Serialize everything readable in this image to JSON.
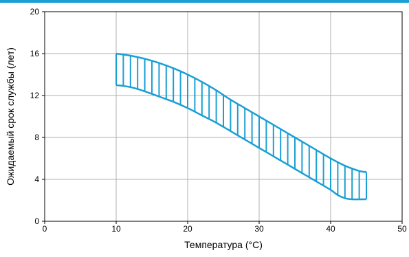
{
  "chart_data": {
    "type": "area",
    "xlabel": "Температура (°C)",
    "ylabel": "Ожидаемый срок службы (лет)",
    "xlim": [
      0,
      50
    ],
    "ylim": [
      0,
      20
    ],
    "x_ticks": [
      "0",
      "10",
      "20",
      "30",
      "40",
      "50"
    ],
    "y_ticks": [
      "0",
      "4",
      "8",
      "12",
      "16",
      "20"
    ],
    "grid": true,
    "hatch": "vertical",
    "series": [
      {
        "role": "upper",
        "x": [
          10,
          12,
          14,
          16,
          18,
          20,
          22,
          24,
          26,
          28,
          30,
          32,
          34,
          36,
          38,
          40,
          42,
          44,
          45
        ],
        "y": [
          16.0,
          15.8,
          15.5,
          15.1,
          14.6,
          14.0,
          13.3,
          12.5,
          11.6,
          10.8,
          10.0,
          9.2,
          8.4,
          7.6,
          6.8,
          6.0,
          5.3,
          4.8,
          4.7
        ]
      },
      {
        "role": "lower",
        "x": [
          10,
          12,
          14,
          16,
          18,
          20,
          22,
          24,
          26,
          28,
          30,
          32,
          34,
          36,
          38,
          40,
          41,
          42,
          43,
          45
        ],
        "y": [
          13.0,
          12.8,
          12.4,
          11.9,
          11.4,
          10.8,
          10.1,
          9.4,
          8.6,
          7.8,
          7.0,
          6.2,
          5.4,
          4.6,
          3.8,
          3.0,
          2.5,
          2.2,
          2.1,
          2.1
        ]
      }
    ],
    "colors": {
      "band": "#1a9fd4",
      "grid": "#b0b0b0",
      "axis": "#000000",
      "top_bar": "#1a9fd4"
    }
  }
}
